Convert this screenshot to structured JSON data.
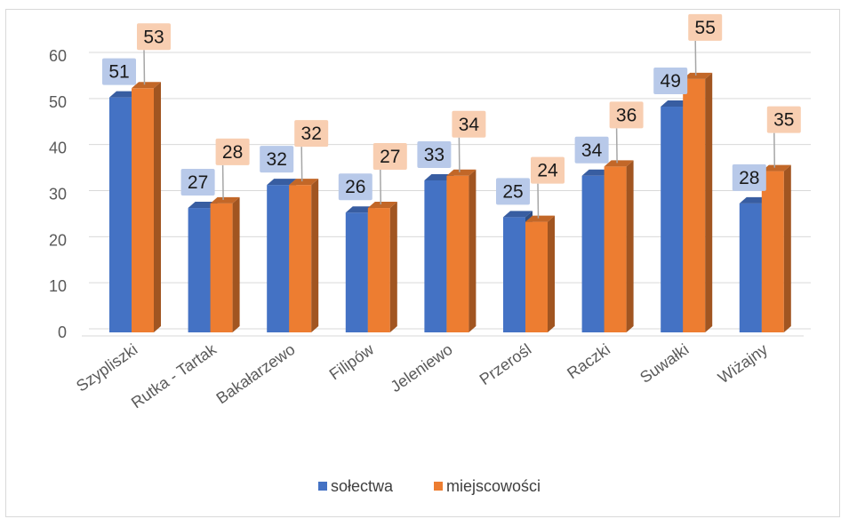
{
  "chart_data": {
    "type": "bar",
    "categories": [
      "Szypliszki",
      "Rutka - Tartak",
      "Bakałarzewo",
      "Filipów",
      "Jeleniewo",
      "Przerośl",
      "Raczki",
      "Suwałki",
      "Wiżajny"
    ],
    "series": [
      {
        "name": "sołectwa",
        "values": [
          51,
          27,
          32,
          26,
          33,
          25,
          34,
          49,
          28
        ],
        "color": "#4472c4"
      },
      {
        "name": "miejscowości",
        "values": [
          53,
          28,
          32,
          27,
          34,
          24,
          36,
          55,
          35
        ],
        "color": "#ed7d31"
      }
    ],
    "yticks": [
      0,
      10,
      20,
      30,
      40,
      50,
      60
    ],
    "ylim": [
      0,
      60
    ],
    "grid": true,
    "legend": "bottom",
    "style": "3d-clustered-column"
  }
}
